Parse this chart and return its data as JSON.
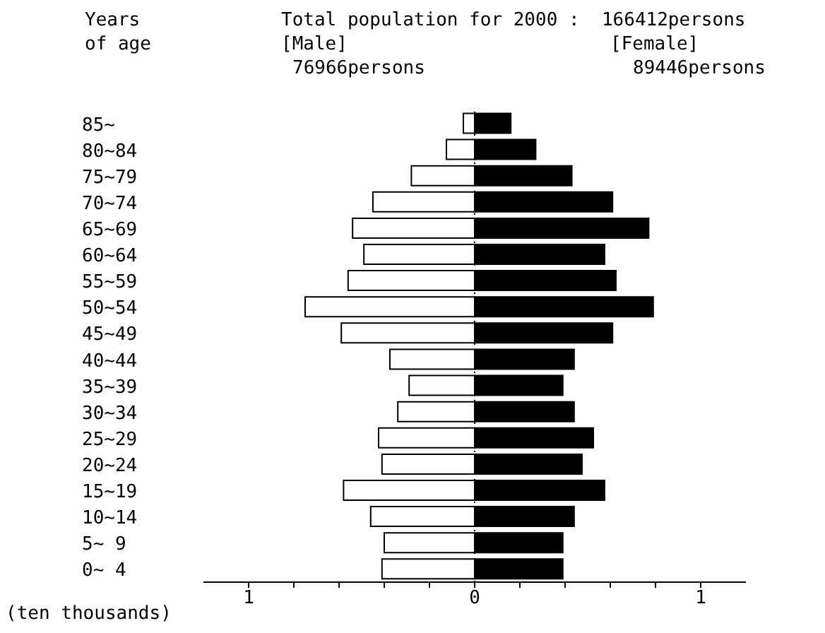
{
  "chart_data": {
    "type": "bar",
    "orientation": "horizontal",
    "stacked": true,
    "title": "Total population for 2000 :  166412persons",
    "ylabel": "Years\nof age",
    "xlabel": "(ten thousands)",
    "categories": [
      "85~",
      "80~84",
      "75~79",
      "70~74",
      "65~69",
      "60~64",
      "55~59",
      "50~54",
      "45~49",
      "40~44",
      "35~39",
      "30~34",
      "25~29",
      "20~24",
      "15~19",
      "10~14",
      "5~ 9",
      "0~ 4"
    ],
    "series": [
      {
        "color": "#ffffff",
        "values": [
          -0.05,
          -0.125,
          -0.28,
          -0.45,
          -0.54,
          -0.49,
          -0.56,
          -0.75,
          -0.59,
          -0.375,
          -0.29,
          -0.34,
          -0.425,
          -0.41,
          -0.58,
          -0.46,
          -0.4,
          -0.41
        ]
      },
      {
        "color": "#000000",
        "values": [
          0.16,
          0.27,
          0.43,
          0.61,
          0.77,
          0.575,
          0.625,
          0.79,
          0.61,
          0.44,
          0.39,
          0.44,
          0.525,
          0.475,
          0.575,
          0.44,
          0.39,
          0.39
        ]
      }
    ],
    "annotations": [
      "[Male]",
      "[Female]",
      "76966persons",
      "89446persons"
    ],
    "xlim": [
      -1.2,
      1.2
    ],
    "xticks": [
      {
        "value": -1,
        "label": "1"
      },
      {
        "value": -0.8,
        "label": null
      },
      {
        "value": -0.6,
        "label": null
      },
      {
        "value": -0.4,
        "label": null
      },
      {
        "value": -0.2,
        "label": null
      },
      {
        "value": 0,
        "label": "0"
      },
      {
        "value": 0.2,
        "label": null
      },
      {
        "value": 0.4,
        "label": null
      },
      {
        "value": 0.6,
        "label": null
      },
      {
        "value": 0.8,
        "label": null
      },
      {
        "value": 1,
        "label": "1"
      }
    ],
    "ref_lines": [
      {
        "axis": "x",
        "value": 0,
        "line_style": "dotted",
        "color": "#000000"
      }
    ],
    "grid": false,
    "legend": false
  }
}
